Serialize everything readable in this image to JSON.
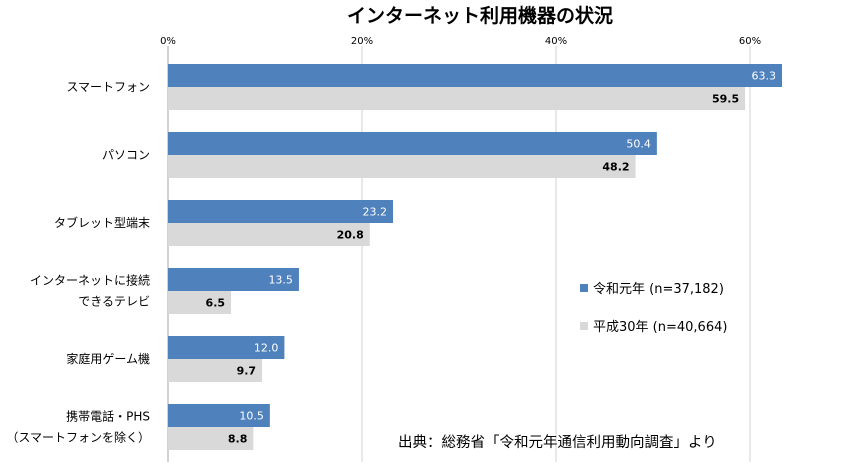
{
  "chart_data": {
    "type": "bar",
    "orientation": "horizontal",
    "title": "インターネット利用機器の状況",
    "categories": [
      [
        "スマートフォン"
      ],
      [
        "パソコン"
      ],
      [
        "タブレット型端末"
      ],
      [
        "インターネットに接続",
        "できるテレビ"
      ],
      [
        "家庭用ゲーム機"
      ],
      [
        "携帯電話・PHS",
        "（スマートフォンを除く）"
      ]
    ],
    "series": [
      {
        "name": "令和元年 (n=37,182)",
        "values": [
          63.3,
          50.4,
          23.2,
          13.5,
          12.0,
          10.5
        ],
        "labels": [
          "63.3",
          "50.4",
          "23.2",
          "13.5",
          "12.0",
          "10.5"
        ],
        "color": "#4f81bd"
      },
      {
        "name": "平成30年 (n=40,664)",
        "values": [
          59.5,
          48.2,
          20.8,
          6.5,
          9.7,
          8.8
        ],
        "labels": [
          "59.5",
          "48.2",
          "20.8",
          "6.5",
          "9.7",
          "8.8"
        ],
        "color": "#d9d9d9"
      }
    ],
    "xlim": [
      0,
      70
    ],
    "x_ticks": [
      0,
      20,
      40,
      60
    ],
    "x_tick_labels": [
      "0%",
      "20%",
      "40%",
      "60%"
    ],
    "grid": true,
    "legend_position": "right",
    "source": "出典：総務省「令和元年通信利用動向調査」より"
  }
}
